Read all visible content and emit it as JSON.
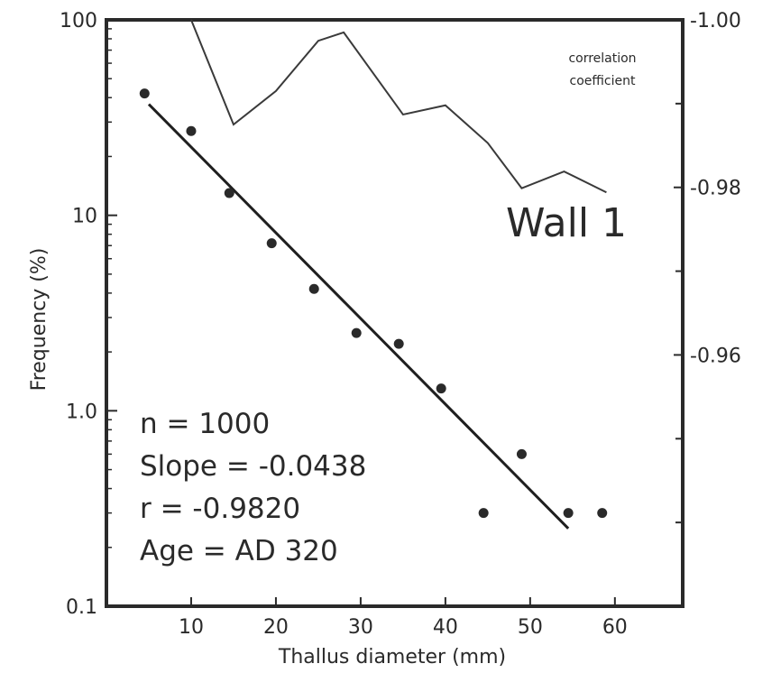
{
  "chart_data": {
    "type": "scatter",
    "panel_title": "Wall 1",
    "xlabel": "Thallus diameter (mm)",
    "ylabel": "Frequency (%)",
    "y2label": "correlation coefficient",
    "xlim": [
      0,
      68
    ],
    "ylim": [
      0.1,
      100
    ],
    "y_scale": "log",
    "y2lim": [
      -0.93,
      -1.0
    ],
    "x_ticks": [
      10,
      20,
      30,
      40,
      50,
      60
    ],
    "y_ticks": [
      {
        "value": 0.1,
        "label": "0.1"
      },
      {
        "value": 1,
        "label": "1.0"
      },
      {
        "value": 10,
        "label": "10"
      },
      {
        "value": 100,
        "label": "100"
      }
    ],
    "y2_ticks": [
      {
        "value": -1.0,
        "label": "-1.00"
      },
      {
        "value": -0.98,
        "label": "-0.98"
      },
      {
        "value": -0.96,
        "label": "-0.96"
      }
    ],
    "y2_minor_ticks": [
      -0.99,
      -0.97,
      -0.95,
      -0.94
    ],
    "grid": false,
    "points": {
      "x": [
        4.5,
        10,
        14.5,
        19.5,
        24.5,
        29.5,
        34.5,
        39.5,
        44.5,
        49,
        54.5,
        58.5
      ],
      "y": [
        42,
        27,
        13,
        7.2,
        4.2,
        2.5,
        2.2,
        1.3,
        0.3,
        0.6,
        0.3,
        0.3
      ]
    },
    "regression_line": {
      "x": [
        5,
        54.5
      ],
      "y": [
        37,
        0.25
      ]
    },
    "correlation_series": {
      "x": [
        10,
        15,
        20,
        25,
        28,
        35,
        40,
        45,
        49,
        54,
        59
      ],
      "y": [
        -1.0,
        -0.9875,
        -0.9915,
        -0.9975,
        -0.9985,
        -0.9887,
        -0.9898,
        -0.9853,
        -0.9799,
        -0.9819,
        -0.9794
      ]
    },
    "annotations": [
      "n = 1000",
      "Slope = -0.0438",
      "r = -0.9820",
      "Age = AD 320"
    ],
    "legend": [
      "correlation",
      "coefficient"
    ]
  }
}
